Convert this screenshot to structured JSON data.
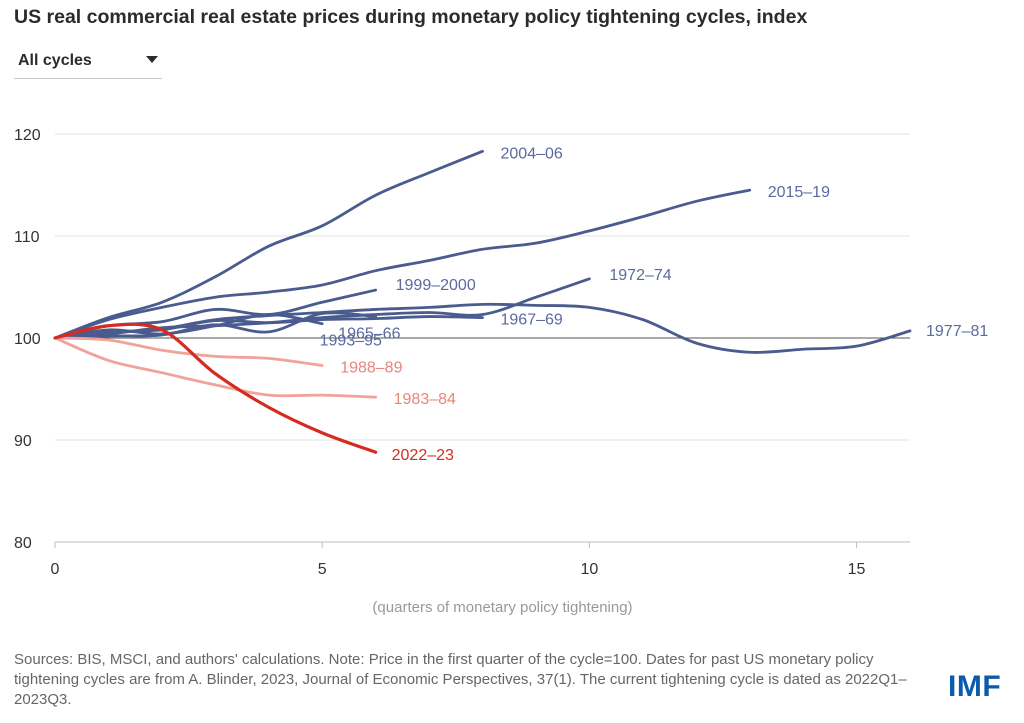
{
  "title": "US real commercial real estate prices during monetary policy tightening cycles, index",
  "dropdown": {
    "selected": "All cycles",
    "icon": "triangle-down-icon"
  },
  "footnote": "Sources: BIS, MSCI, and authors' calculations. Note: Price in the first quarter of the cycle=100. Dates for past US monetary policy tightening cycles are from A. Blinder, 2023, Journal of Economic Perspectives, 37(1). The current tightening cycle is dated as 2022Q1–2023Q3.",
  "logo_text": "IMF",
  "colors": {
    "past": "#4a5b8f",
    "label_past": "#5a6aa0",
    "pink": "#f0a29b",
    "pink_label": "#e8857c",
    "current": "#d62b20",
    "grid": "#e3e3e3",
    "baseline": "#555555",
    "axis_text": "#333333",
    "xlabel_text": "#999999",
    "logo": "#0a5bab"
  },
  "chart_data": {
    "type": "line",
    "title": "US real commercial real estate prices during monetary policy tightening cycles, index",
    "xlabel": "(quarters of monetary policy tightening)",
    "ylabel": "",
    "xlim": [
      0,
      16
    ],
    "ylim": [
      80,
      120
    ],
    "xticks": [
      0,
      5,
      10,
      15
    ],
    "yticks": [
      80,
      90,
      100,
      110,
      120
    ],
    "baseline": 100,
    "grid": true,
    "series": [
      {
        "name": "2004–06",
        "group": "past",
        "x": [
          0,
          1,
          2,
          3,
          4,
          5,
          6,
          7,
          8
        ],
        "y": [
          100,
          102,
          103.5,
          106,
          109,
          111,
          114,
          116.2,
          118.3
        ]
      },
      {
        "name": "2015–19",
        "group": "past",
        "x": [
          0,
          1,
          2,
          3,
          4,
          5,
          6,
          7,
          8,
          9,
          10,
          11,
          12,
          13
        ],
        "y": [
          100,
          101.8,
          103,
          104,
          104.5,
          105.2,
          106.6,
          107.6,
          108.7,
          109.3,
          110.5,
          111.9,
          113.4,
          114.5
        ]
      },
      {
        "name": "1999–2000",
        "group": "past",
        "x": [
          0,
          1,
          2,
          3,
          4,
          5,
          6
        ],
        "y": [
          100,
          101.2,
          101.6,
          102.8,
          102.3,
          103.5,
          104.7
        ]
      },
      {
        "name": "1972–74",
        "group": "past",
        "x": [
          0,
          1,
          2,
          3,
          4,
          5,
          6,
          7,
          8,
          9,
          10
        ],
        "y": [
          100,
          100.4,
          101,
          101.2,
          101.5,
          102,
          102.3,
          102.5,
          102.3,
          104,
          105.8
        ]
      },
      {
        "name": "1965–66",
        "group": "past",
        "x": [
          0,
          1,
          2,
          3,
          4,
          5
        ],
        "y": [
          100,
          100.8,
          100.4,
          101.2,
          102.3,
          101.4
        ]
      },
      {
        "name": "1993–95",
        "group": "past",
        "x": [
          0,
          1,
          2,
          3,
          4,
          5,
          6
        ],
        "y": [
          100,
          100.2,
          100.3,
          101.3,
          100.6,
          102.4,
          102.1
        ]
      },
      {
        "name": "1967–69",
        "group": "past",
        "x": [
          0,
          1,
          2,
          3,
          4,
          5,
          6,
          7,
          8
        ],
        "y": [
          100,
          100.6,
          100.8,
          101.7,
          101.5,
          101.8,
          101.9,
          102.1,
          102
        ]
      },
      {
        "name": "1977–81",
        "group": "past",
        "x": [
          0,
          1,
          2,
          3,
          4,
          5,
          6,
          7,
          8,
          9,
          10,
          11,
          12,
          13,
          14,
          15,
          16
        ],
        "y": [
          100,
          100.5,
          100.9,
          101.8,
          102.2,
          102.5,
          102.8,
          103,
          103.3,
          103.2,
          103,
          101.8,
          99.5,
          98.6,
          98.9,
          99.2,
          100.7
        ]
      },
      {
        "name": "1988–89",
        "group": "pink",
        "x": [
          0,
          1,
          2,
          3,
          4,
          5
        ],
        "y": [
          100,
          99.8,
          98.8,
          98.2,
          98,
          97.3
        ]
      },
      {
        "name": "1983–84",
        "group": "pink",
        "x": [
          0,
          1,
          2,
          3,
          4,
          5,
          6
        ],
        "y": [
          100,
          97.8,
          96.6,
          95.4,
          94.4,
          94.4,
          94.2
        ]
      },
      {
        "name": "2022–23",
        "group": "current",
        "x": [
          0,
          1,
          2,
          3,
          4,
          5,
          6
        ],
        "y": [
          100,
          101.2,
          100.8,
          96.5,
          93.2,
          90.7,
          88.8
        ]
      }
    ]
  }
}
